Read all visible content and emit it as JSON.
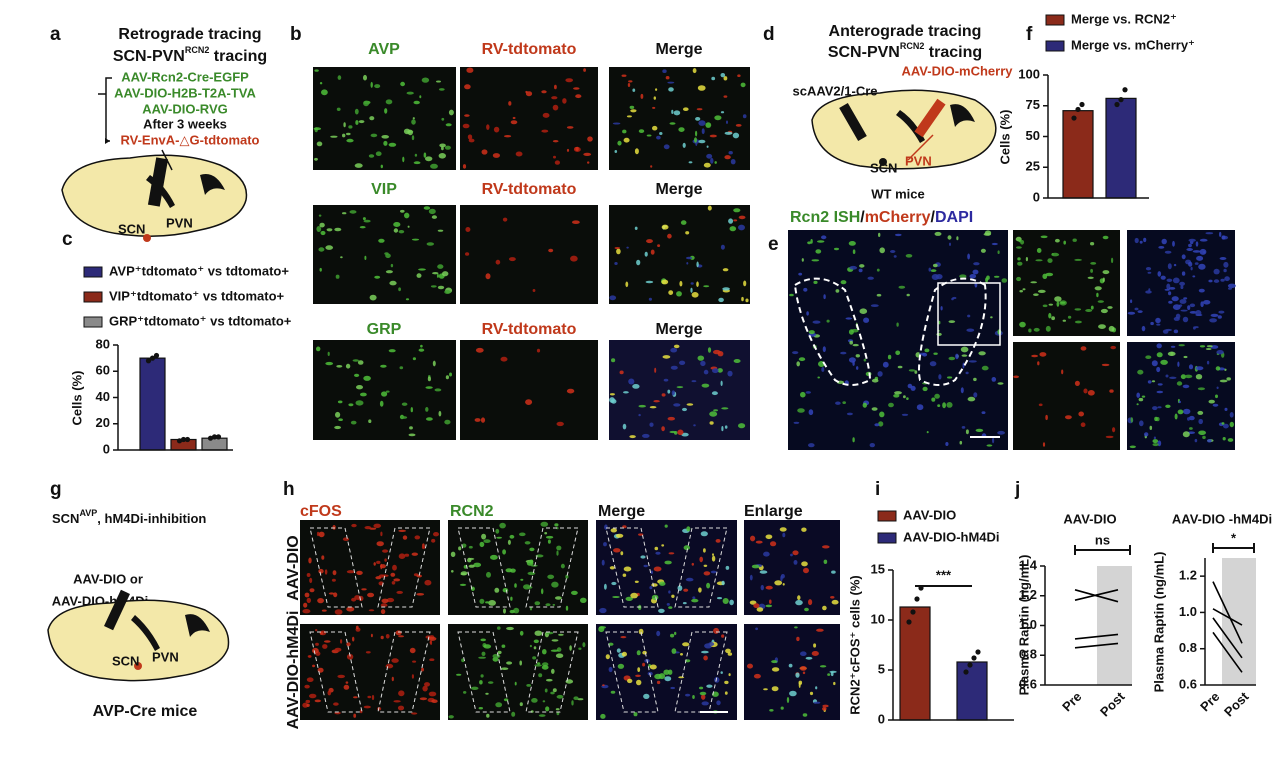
{
  "panel_labels": [
    "a",
    "b",
    "c",
    "d",
    "e",
    "f",
    "g",
    "h",
    "i",
    "j"
  ],
  "panel_a": {
    "title": "Retrograde tracing",
    "subtitle": [
      "SCN-PVN",
      "RCN2",
      " tracing"
    ],
    "steps": [
      "AAV-Rcn2-Cre-EGFP",
      "AAV-DIO-H2B-T2A-TVA",
      "AAV-DIO-RVG",
      "After 3 weeks",
      "RV-EnvA-△G-tdtomato"
    ],
    "brain_labels": [
      "SCN",
      "PVN"
    ]
  },
  "panel_b": {
    "rows": [
      [
        "AVP",
        "RV-tdtomato",
        "Merge"
      ],
      [
        "VIP",
        "RV-tdtomato",
        "Merge"
      ],
      [
        "GRP",
        "RV-tdtomato",
        "Merge"
      ]
    ]
  },
  "panel_d": {
    "title": "Anterograde tracing",
    "subtitle": [
      "SCN-PVN",
      "RCN2",
      " tracing"
    ],
    "injections": [
      "scAAV2/1-Cre",
      "AAV-DIO-mCherry"
    ],
    "brain_labels": [
      "SCN",
      "PVN"
    ],
    "footer": "WT mice"
  },
  "panel_e": {
    "title": [
      "Rcn2 ISH",
      "/",
      "mCherry",
      "/",
      "DAPI"
    ]
  },
  "panel_g": {
    "title": [
      "SCN",
      "AVP",
      ", hM4Di-inhibition"
    ],
    "injections": [
      "AAV-DIO or",
      "AAV-DIO-hM4Di"
    ],
    "brain_labels": [
      "SCN",
      "PVN"
    ],
    "footer": "AVP-Cre mice"
  },
  "panel_h": {
    "columns": [
      "cFOS",
      "RCN2",
      "Merge",
      "Enlarge"
    ],
    "rows": [
      "AAV-DIO",
      "AAV-DIO-hM4Di"
    ]
  },
  "chart_data": [
    {
      "type": "bar",
      "ylabel": "Cells (%)",
      "categories": [
        null
      ],
      "ylim": [
        0,
        80
      ],
      "yticks": [
        0,
        20,
        40,
        60,
        80
      ],
      "series": [
        {
          "name": "AVP⁺tdtomato⁺ vs tdtomato+",
          "color": "#2d2a78",
          "values": [
            70
          ],
          "points": [
            68,
            70,
            72
          ]
        },
        {
          "name": "VIP⁺tdtomato⁺ vs tdtomato+",
          "color": "#8b2a1a",
          "values": [
            8
          ],
          "points": [
            7,
            8,
            8
          ]
        },
        {
          "name": "GRP⁺tdtomato⁺ vs tdtomato+",
          "color": "#8a8a8a",
          "values": [
            9
          ],
          "points": [
            9,
            10,
            10
          ]
        }
      ]
    },
    {
      "type": "bar",
      "ylabel": "Cells (%)",
      "categories": [
        null
      ],
      "ylim": [
        0,
        100
      ],
      "yticks": [
        0,
        25,
        50,
        75,
        100
      ],
      "series": [
        {
          "name": "Merge vs. RCN2⁺",
          "color": "#8b2a1a",
          "values": [
            71
          ],
          "points": [
            65,
            72,
            76
          ]
        },
        {
          "name": "Merge vs. mCherry⁺",
          "color": "#2d2a78",
          "values": [
            81
          ],
          "points": [
            76,
            80,
            88
          ]
        }
      ]
    },
    {
      "type": "bar",
      "ylabel": "RCN2⁺cFOS⁺ cells (%)",
      "categories": [
        null
      ],
      "ylim": [
        0,
        15
      ],
      "yticks": [
        0,
        5,
        10,
        15
      ],
      "annotation": "***",
      "series": [
        {
          "name": "AAV-DIO",
          "color": "#8b2a1a",
          "values": [
            11.3
          ],
          "points": [
            9.8,
            10.8,
            12.1,
            13.2
          ]
        },
        {
          "name": "AAV-DIO-hM4Di",
          "color": "#2d2a78",
          "values": [
            5.8
          ],
          "points": [
            4.8,
            5.5,
            6.2,
            6.8
          ]
        }
      ]
    },
    {
      "type": "line",
      "title": "AAV-DIO",
      "ylabel": "Plasma Raptin  (ng/mL)",
      "categories": [
        "Pre",
        "Post"
      ],
      "annotation": "ns",
      "ylim": [
        0.6,
        1.4
      ],
      "yticks": [
        0.6,
        0.8,
        {
          "value": 1,
          "label": "1.0"
        },
        1.2,
        1.4
      ],
      "series": [
        {
          "color": "#000000",
          "values": [
            1.24,
            1.16
          ]
        },
        {
          "color": "#000000",
          "values": [
            1.17,
            1.24
          ]
        },
        {
          "color": "#000000",
          "values": [
            0.91,
            0.94
          ]
        },
        {
          "color": "#000000",
          "values": [
            0.85,
            0.88
          ]
        }
      ]
    },
    {
      "type": "line",
      "title": "AAV-DIO -hM4Di",
      "ylabel": "Plasma Raptin  (ng/mL)",
      "categories": [
        "Pre",
        "Post"
      ],
      "annotation": "*",
      "ylim": [
        0.6,
        1.3
      ],
      "yticks": [
        0.6,
        0.8,
        {
          "value": 1,
          "label": "1.0"
        },
        1.2
      ],
      "series": [
        {
          "color": "#000000",
          "values": [
            1.17,
            0.83
          ]
        },
        {
          "color": "#000000",
          "values": [
            1.02,
            0.93
          ]
        },
        {
          "color": "#000000",
          "values": [
            0.97,
            0.75
          ]
        },
        {
          "color": "#000000",
          "values": [
            0.89,
            0.67
          ]
        }
      ]
    }
  ]
}
